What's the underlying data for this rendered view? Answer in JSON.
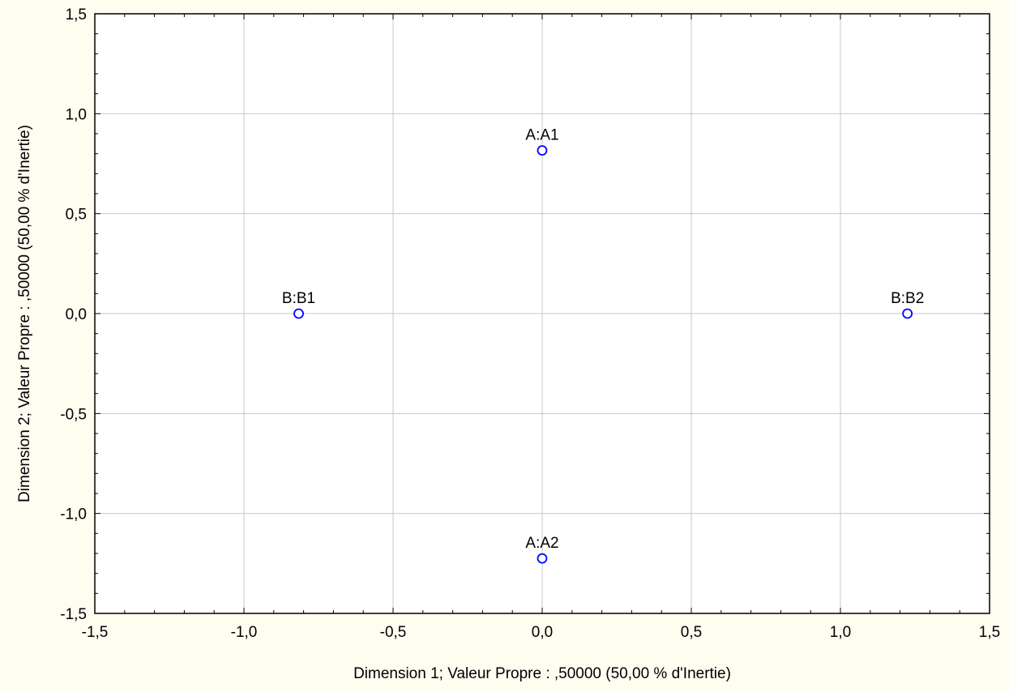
{
  "chart_data": {
    "type": "scatter",
    "title": "",
    "xlabel": "Dimension 1; Valeur Propre : ,50000 (50,00  % d'Inertie)",
    "ylabel": "Dimension 2; Valeur Propre : ,50000 (50,00  % d'Inertie)",
    "xlim": [
      -1.5,
      1.5
    ],
    "ylim": [
      -1.5,
      1.5
    ],
    "x_ticks": [
      -1.5,
      -1.0,
      -0.5,
      0.0,
      0.5,
      1.0,
      1.5
    ],
    "y_ticks": [
      -1.5,
      -1.0,
      -0.5,
      0.0,
      0.5,
      1.0,
      1.5
    ],
    "x_tick_labels": [
      "-1,5",
      "-1,0",
      "-0,5",
      "0,0",
      "0,5",
      "1,0",
      "1,5"
    ],
    "y_tick_labels": [
      "-1,5",
      "-1,0",
      "-0,5",
      "0,0",
      "0,5",
      "1,0",
      "1,5"
    ],
    "grid": true,
    "points": [
      {
        "label": "A:A1",
        "x": 0.0,
        "y": 0.8165
      },
      {
        "label": "A:A2",
        "x": 0.0,
        "y": -1.2247
      },
      {
        "label": "B:B1",
        "x": -0.8165,
        "y": 0.0
      },
      {
        "label": "B:B2",
        "x": 1.2247,
        "y": 0.0
      }
    ],
    "colors": {
      "background": "#fffcf0",
      "plot_area": "#ffffff",
      "grid": "#c8c8c8",
      "marker": "#0000ff",
      "axis": "#000000"
    }
  }
}
